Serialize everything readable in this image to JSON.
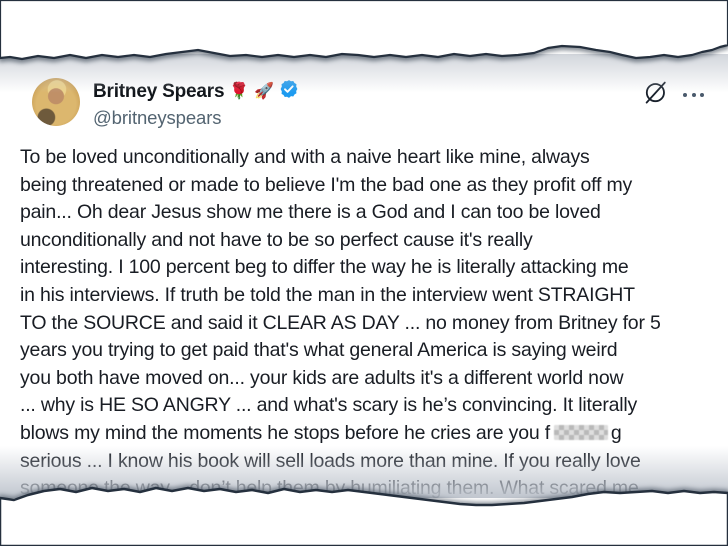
{
  "post": {
    "display_name": "Britney Spears",
    "emoji_rose": "🌹",
    "emoji_rocket": "🚀",
    "verified": true,
    "handle": "@britneyspears",
    "lines": [
      "To be loved unconditionally and with a naive heart like mine, always",
      "being threatened or made to believe I'm the bad one as they profit off my",
      "pain... Oh dear Jesus show me there is a God and I can too be loved",
      "unconditionally and not have to be so perfect cause it's really",
      "interesting. I 100 percent beg to differ the way he is literally attacking me",
      "in his interviews. If truth be told the man in the interview went STRAIGHT",
      "TO the SOURCE and said it CLEAR AS DAY ... no money from Britney for 5",
      "years you trying to get paid that's what general America is saying weird",
      "you both have moved on... your kids are adults it's a different world now",
      "... why is HE SO ANGRY ... and what's scary is he’s convincing. It literally",
      "blows my mind the moments he stops before he cries are you f{{censor}}g",
      "serious ... I know his book will sell loads more than mine. If you really love",
      "someone the way... don’t help them by humiliating them. What scared me ..."
    ]
  },
  "icons": {
    "verified_badge": "blue-checkmark-seal",
    "grok": "slashed-circle",
    "more": "horizontal-ellipsis"
  },
  "colors": {
    "text": "#191d24",
    "secondary_text": "#536471",
    "verified_blue": "#1d9bf0",
    "tear_line": "#25303e",
    "background": "#ffffff"
  }
}
